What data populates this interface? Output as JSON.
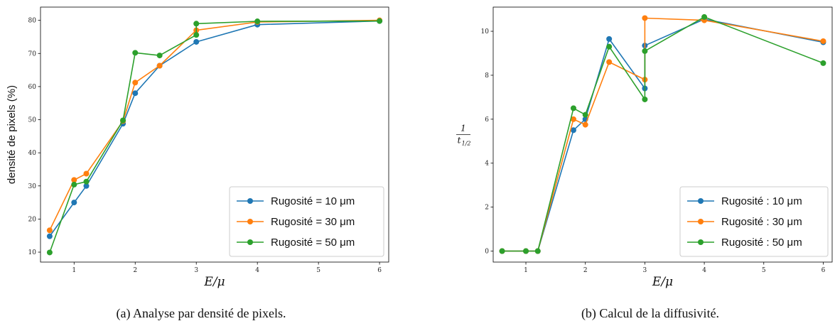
{
  "chart_data": [
    {
      "type": "line",
      "xlabel": "E/μ",
      "ylabel": "densité de pixels (%)",
      "caption": "(a) Analyse par densité de pixels.",
      "xlim": [
        0.45,
        6.15
      ],
      "ylim": [
        7,
        84
      ],
      "xticks": [
        1,
        2,
        3,
        4,
        5,
        6
      ],
      "yticks": [
        10,
        20,
        30,
        40,
        50,
        60,
        70,
        80
      ],
      "grid": false,
      "legend_position": "lower-right",
      "series": [
        {
          "name": "Rugosité = 10 μm",
          "color": "#1f77b4",
          "x": [
            0.6,
            1.0,
            1.2,
            1.8,
            2.0,
            2.4,
            3.0,
            4.0,
            6.0
          ],
          "y": [
            14.8,
            25.0,
            30.0,
            48.8,
            58.0,
            66.3,
            73.5,
            78.7,
            79.8
          ]
        },
        {
          "name": "Rugosité = 30 μm",
          "color": "#ff7f0e",
          "x": [
            0.6,
            1.0,
            1.2,
            1.8,
            2.0,
            2.4,
            3.0,
            4.0,
            6.0
          ],
          "y": [
            16.6,
            31.8,
            33.7,
            49.6,
            61.2,
            66.3,
            77.0,
            79.5,
            80.0
          ]
        },
        {
          "name": "Rugosité = 50 μm",
          "color": "#2ca02c",
          "x": [
            0.6,
            1.0,
            1.2,
            1.8,
            2.0,
            2.4,
            3.0,
            3.0,
            4.0,
            6.0
          ],
          "y": [
            9.9,
            30.4,
            31.3,
            49.8,
            70.2,
            69.4,
            75.6,
            79.0,
            79.7,
            79.8
          ]
        }
      ]
    },
    {
      "type": "line",
      "xlabel": "E/μ",
      "ylabel": "1/t_{1/2}",
      "ylabel_num": "1",
      "ylabel_den": "t",
      "ylabel_sub": "1/2",
      "caption": "(b) Calcul de la diffusivité.",
      "xlim": [
        0.45,
        6.15
      ],
      "ylim": [
        -0.5,
        11.1
      ],
      "xticks": [
        1,
        2,
        3,
        4,
        5,
        6
      ],
      "yticks": [
        0,
        2,
        4,
        6,
        8,
        10
      ],
      "grid": false,
      "legend_position": "lower-right",
      "series": [
        {
          "name": "Rugosité : 10 μm",
          "color": "#1f77b4",
          "x": [
            0.6,
            1.0,
            1.2,
            1.8,
            2.0,
            2.4,
            3.0,
            3.0,
            4.0,
            6.0
          ],
          "y": [
            0.0,
            0.0,
            0.0,
            5.5,
            6.0,
            9.65,
            7.4,
            9.35,
            10.55,
            9.5
          ]
        },
        {
          "name": "Rugosité : 30 μm",
          "color": "#ff7f0e",
          "x": [
            0.6,
            1.0,
            1.2,
            1.8,
            2.0,
            2.4,
            3.0,
            3.0,
            4.0,
            6.0
          ],
          "y": [
            0.0,
            0.0,
            0.0,
            6.0,
            5.75,
            8.6,
            7.8,
            10.6,
            10.5,
            9.55
          ]
        },
        {
          "name": "Rugosité : 50 μm",
          "color": "#2ca02c",
          "x": [
            0.6,
            1.0,
            1.2,
            1.8,
            2.0,
            2.4,
            3.0,
            3.0,
            4.0,
            6.0
          ],
          "y": [
            0.0,
            0.0,
            0.0,
            6.5,
            6.2,
            9.3,
            6.9,
            9.1,
            10.65,
            8.55
          ]
        }
      ]
    }
  ]
}
